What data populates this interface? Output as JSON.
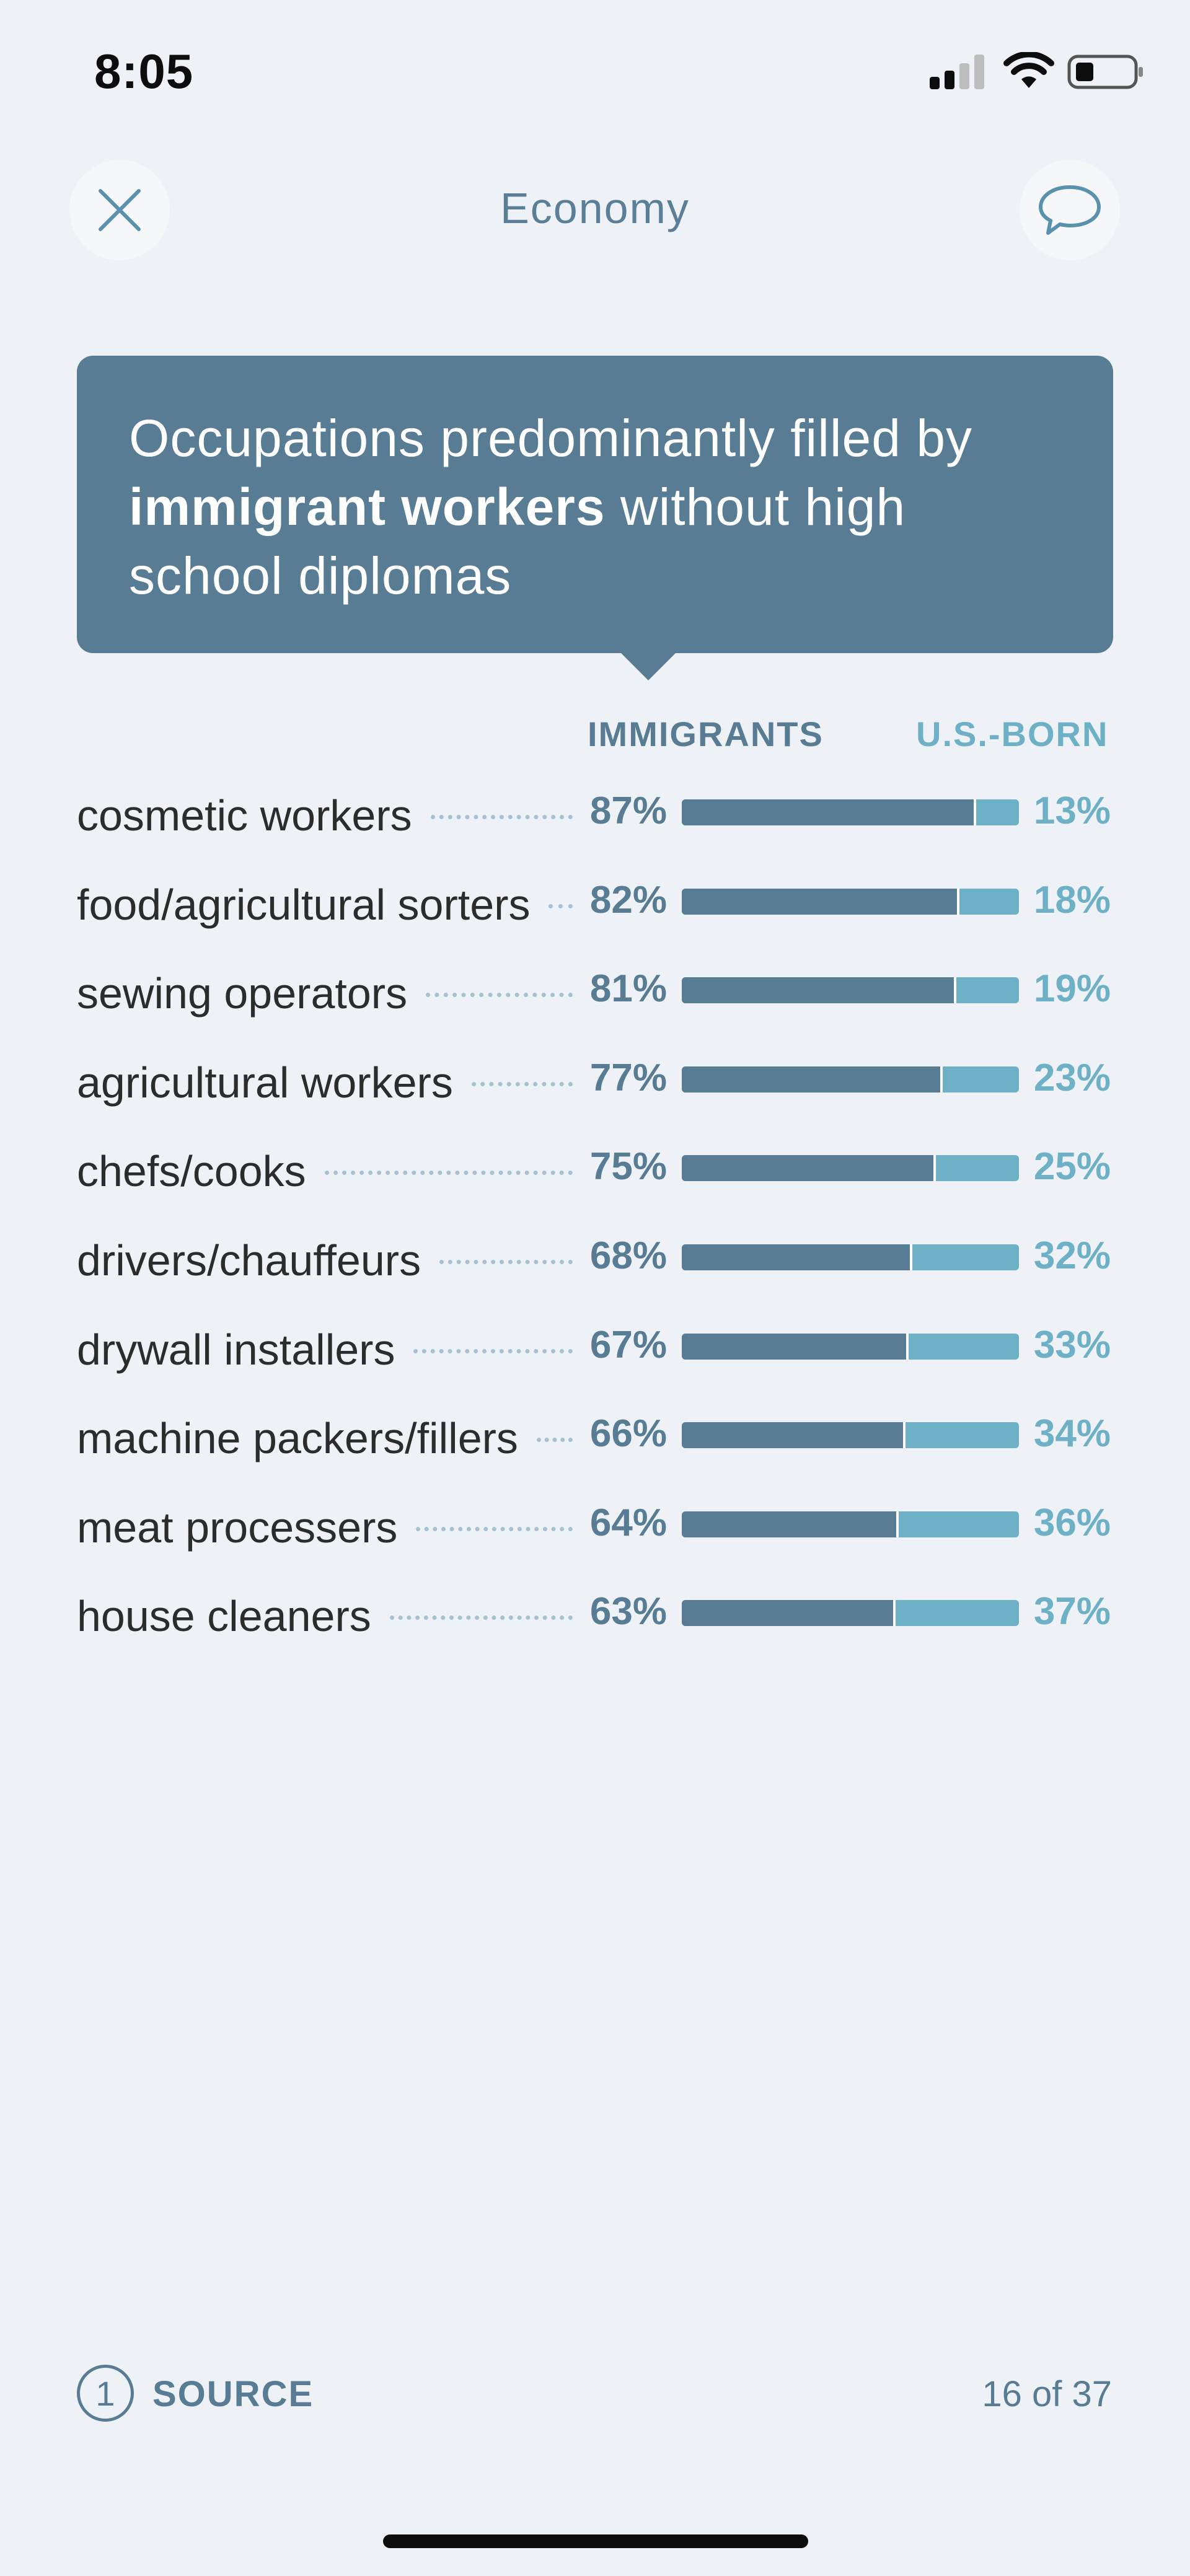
{
  "status_bar": {
    "time": "8:05"
  },
  "header": {
    "title": "Economy"
  },
  "card": {
    "title_part1": "Occupations predominantly filled by ",
    "title_bold": "immigrant workers",
    "title_part2": " without high school diplomas"
  },
  "chart_data": {
    "type": "bar",
    "stacked": true,
    "orientation": "horizontal",
    "title": "Occupations predominantly filled by immigrant workers without high school diplomas",
    "categories": [
      "cosmetic workers",
      "food/agricultural sorters",
      "sewing operators",
      "agricultural workers",
      "chefs/cooks",
      "drivers/chauffeurs",
      "drywall installers",
      "machine packers/fillers",
      "meat processers",
      "house cleaners"
    ],
    "series": [
      {
        "name": "IMMIGRANTS",
        "color": "#587c93",
        "values": [
          87,
          82,
          81,
          77,
          75,
          68,
          67,
          66,
          64,
          63
        ]
      },
      {
        "name": "U.S.-BORN",
        "color": "#6eb0c5",
        "values": [
          13,
          18,
          19,
          23,
          25,
          32,
          33,
          34,
          36,
          37
        ]
      }
    ],
    "labels_imm": [
      "87%",
      "82%",
      "81%",
      "77%",
      "75%",
      "68%",
      "67%",
      "66%",
      "64%",
      "63%"
    ],
    "labels_us": [
      "13%",
      "18%",
      "19%",
      "23%",
      "25%",
      "32%",
      "33%",
      "34%",
      "36%",
      "37%"
    ],
    "xlim": [
      0,
      100
    ],
    "unit": "%"
  },
  "footer": {
    "source_number": "1",
    "source_label": "SOURCE",
    "page_count": "16 of 37"
  }
}
